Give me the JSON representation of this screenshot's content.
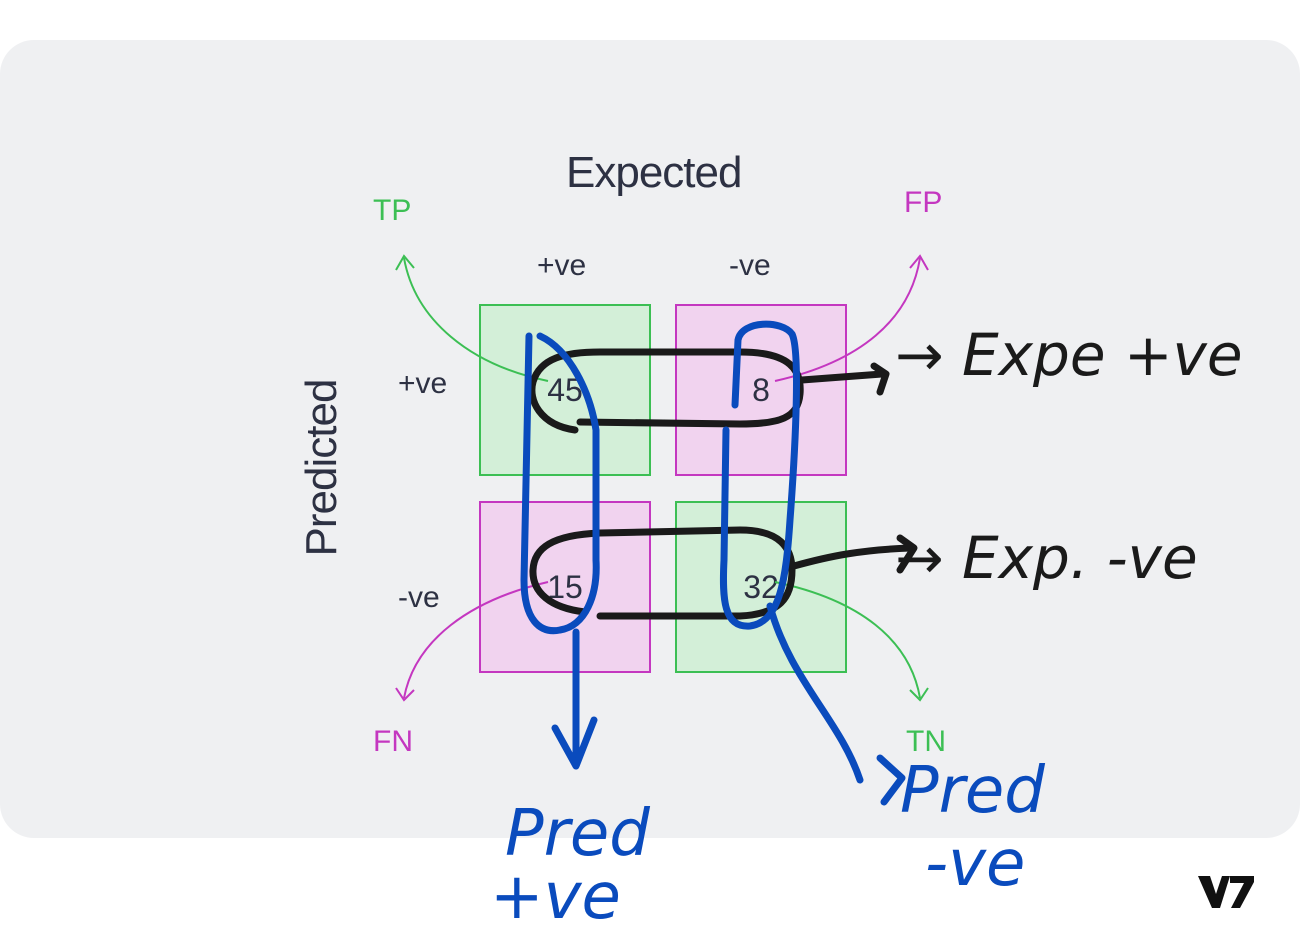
{
  "diagram": {
    "title": "Expected",
    "ylabel": "Predicted",
    "columns": [
      "+ve",
      "-ve"
    ],
    "rows": [
      "+ve",
      "-ve"
    ],
    "cells": [
      {
        "value": "45",
        "kind": "TP",
        "color": "#d3efd8"
      },
      {
        "value": "8",
        "kind": "FP",
        "color": "#f1d3ef"
      },
      {
        "value": "15",
        "kind": "FN",
        "color": "#f1d3ef"
      },
      {
        "value": "32",
        "kind": "TN",
        "color": "#d3efd8"
      }
    ],
    "corners": {
      "tp": "TP",
      "fp": "FP",
      "fn": "FN",
      "tn": "TN"
    },
    "colors": {
      "green": "#3cbf54",
      "magenta": "#c437c0",
      "ink_black": "#1a1a1a",
      "ink_blue": "#0a4bbd"
    }
  },
  "annotations": {
    "exp_pos": "→ Expe +ve",
    "exp_neg": "→ Exp. -ve",
    "pred_pos": "Pred +ve",
    "pred_neg": "Pred -ve"
  },
  "logo": "V7"
}
